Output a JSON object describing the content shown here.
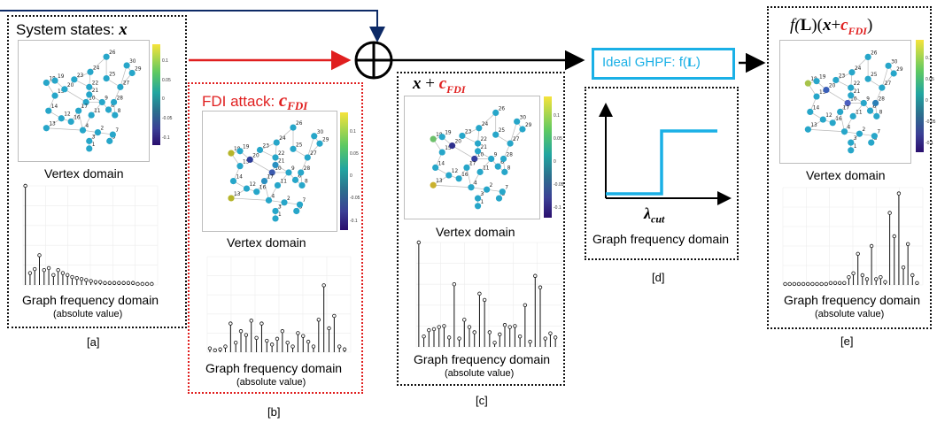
{
  "panels": {
    "a": {
      "title": "System states: ",
      "title_var": "x",
      "vertex_label": "Vertex domain",
      "freq_label": "Graph frequency domain",
      "freq_sub": "(absolute value)",
      "tag": "[a]"
    },
    "b": {
      "title": "FDI attack: ",
      "title_var": "c",
      "title_sub": "FDI",
      "vertex_label": "Vertex domain",
      "freq_label": "Graph frequency domain",
      "freq_sub": "(absolute value)",
      "tag": "[b]"
    },
    "c": {
      "title_var": "x",
      "title_plus": " + ",
      "title_c": "c",
      "title_sub": "FDI",
      "vertex_label": "Vertex domain",
      "freq_label": "Graph frequency domain",
      "freq_sub": "(absolute value)",
      "tag": "[c]"
    },
    "d": {
      "filter_label": "Ideal GHPF: f(",
      "filter_L": "L",
      "filter_close": ")",
      "cut_label": "λ",
      "cut_sub": "cut",
      "freq_label": "Graph frequency domain",
      "tag": "[d]"
    },
    "e": {
      "title_f": "f(",
      "title_L": "L",
      "title_mid": ")(",
      "title_x": "x",
      "title_plus": "+",
      "title_c": "c",
      "title_sub": "FDI",
      "title_close": ")",
      "vertex_label": "Vertex domain",
      "freq_label": "Graph frequency domain",
      "freq_sub": "(absolute value)",
      "tag": "[e]"
    }
  },
  "colorbar_ticks": [
    "0.1",
    "0.05",
    "0",
    "-0.05",
    "-0.1"
  ],
  "node_labels": [
    "1",
    "2",
    "3",
    "4",
    "5",
    "6",
    "7",
    "8",
    "9",
    "10",
    "11",
    "12",
    "13",
    "14",
    "15",
    "16",
    "17",
    "18",
    "19",
    "20",
    "21",
    "22",
    "23",
    "24",
    "25",
    "26",
    "27",
    "28",
    "29",
    "30"
  ],
  "colors": {
    "fdi_red": "#e01f1f",
    "ghpf_blue": "#1ab0e6",
    "arrow_navy": "#0d2a66",
    "node_default": "#27a6c9"
  },
  "stems": {
    "a": [
      1.0,
      0.12,
      0.16,
      0.3,
      0.15,
      0.17,
      0.1,
      0.15,
      0.12,
      0.1,
      0.08,
      0.07,
      0.06,
      0.05,
      0.04,
      0.03,
      0.03,
      0.02,
      0.02,
      0.02,
      0.02,
      0.02,
      0.02,
      0.02,
      0.01,
      0.01,
      0.01,
      0.01
    ],
    "b": [
      0.04,
      0.02,
      0.03,
      0.06,
      0.3,
      0.1,
      0.22,
      0.18,
      0.33,
      0.15,
      0.3,
      0.12,
      0.08,
      0.14,
      0.22,
      0.1,
      0.06,
      0.2,
      0.17,
      0.11,
      0.06,
      0.34,
      0.7,
      0.25,
      0.38,
      0.06,
      0.03
    ],
    "c": [
      1.0,
      0.1,
      0.16,
      0.17,
      0.19,
      0.2,
      0.09,
      0.6,
      0.08,
      0.26,
      0.19,
      0.14,
      0.51,
      0.45,
      0.14,
      0.04,
      0.12,
      0.21,
      0.19,
      0.2,
      0.1,
      0.4,
      0.05,
      0.68,
      0.57,
      0.08,
      0.13,
      0.09
    ],
    "e": [
      0.01,
      0.01,
      0.01,
      0.01,
      0.01,
      0.01,
      0.01,
      0.01,
      0.01,
      0.01,
      0.02,
      0.02,
      0.02,
      0.02,
      0.08,
      0.12,
      0.32,
      0.1,
      0.06,
      0.4,
      0.06,
      0.08,
      0.03,
      0.74,
      0.5,
      0.94,
      0.18,
      0.42,
      0.1,
      0.02
    ]
  }
}
